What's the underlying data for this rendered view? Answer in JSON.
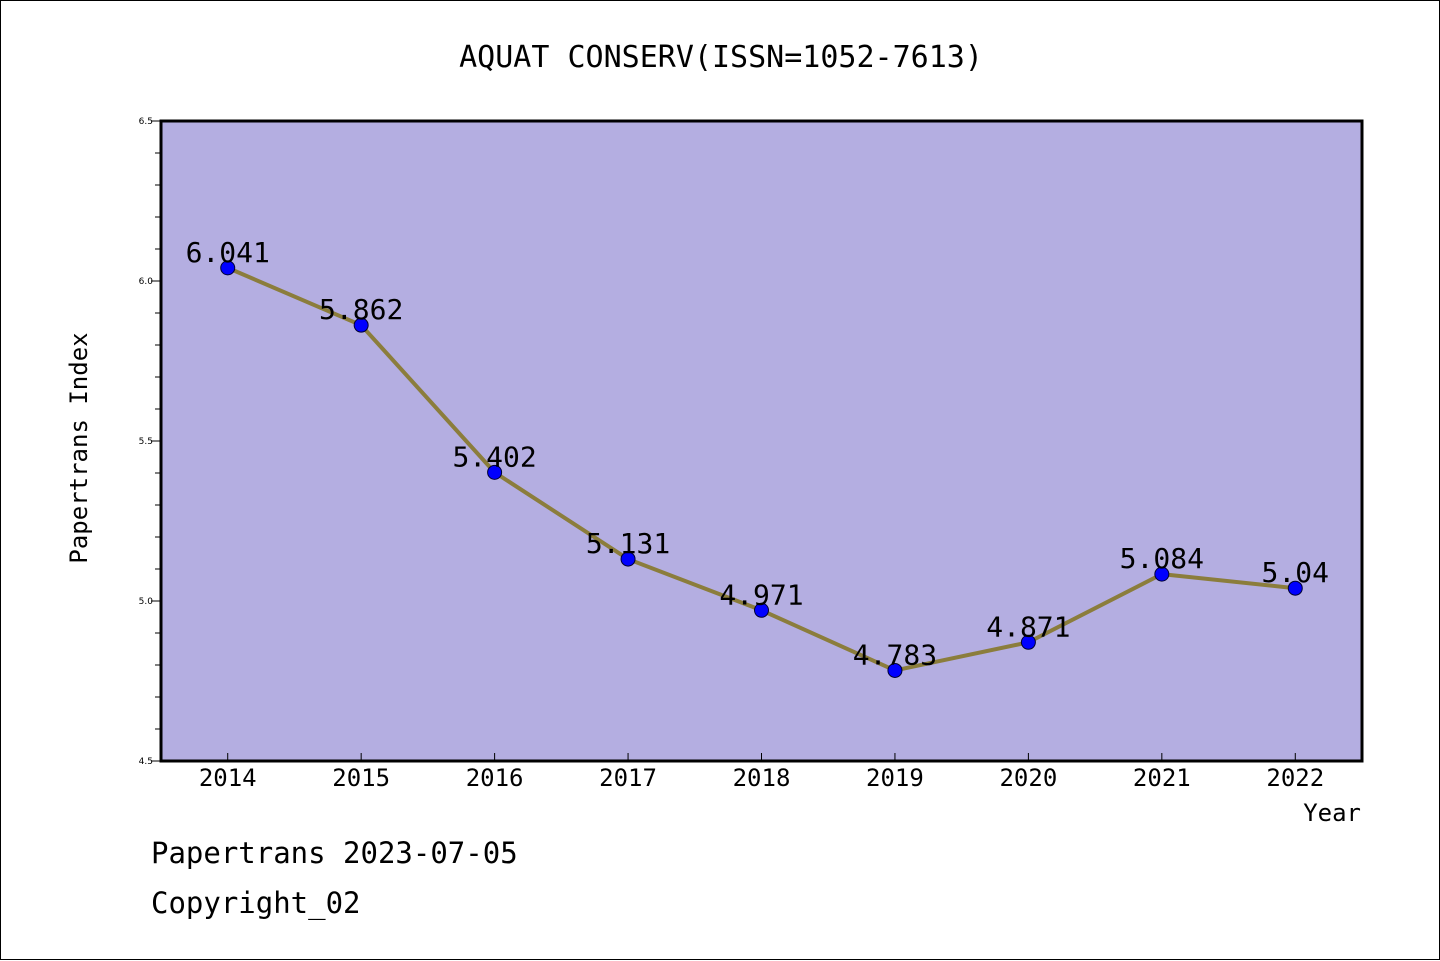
{
  "chart_data": {
    "type": "line",
    "title": "AQUAT CONSERV(ISSN=1052-7613)",
    "xlabel": "Year",
    "ylabel": "Papertrans Index",
    "categories": [
      "2014",
      "2015",
      "2016",
      "2017",
      "2018",
      "2019",
      "2020",
      "2021",
      "2022"
    ],
    "series": [
      {
        "values": [
          6.041,
          5.862,
          5.402,
          5.131,
          4.971,
          4.783,
          4.871,
          5.084,
          5.04
        ],
        "labels": [
          "6.041",
          "5.862",
          "5.402",
          "5.131",
          "4.971",
          "4.783",
          "4.871",
          "5.084",
          "5.04"
        ]
      }
    ],
    "ylim": [
      4.5,
      6.5
    ],
    "yticks": [
      "4.5",
      "5.0",
      "5.5",
      "6.0",
      "6.5"
    ],
    "grid": false,
    "colors": {
      "plot_background": "#b4aee1",
      "line": "#8b7d3c",
      "marker": "#0000ff"
    }
  },
  "footer": {
    "line1": "Papertrans 2023-07-05",
    "line2": "Copyright_02"
  }
}
